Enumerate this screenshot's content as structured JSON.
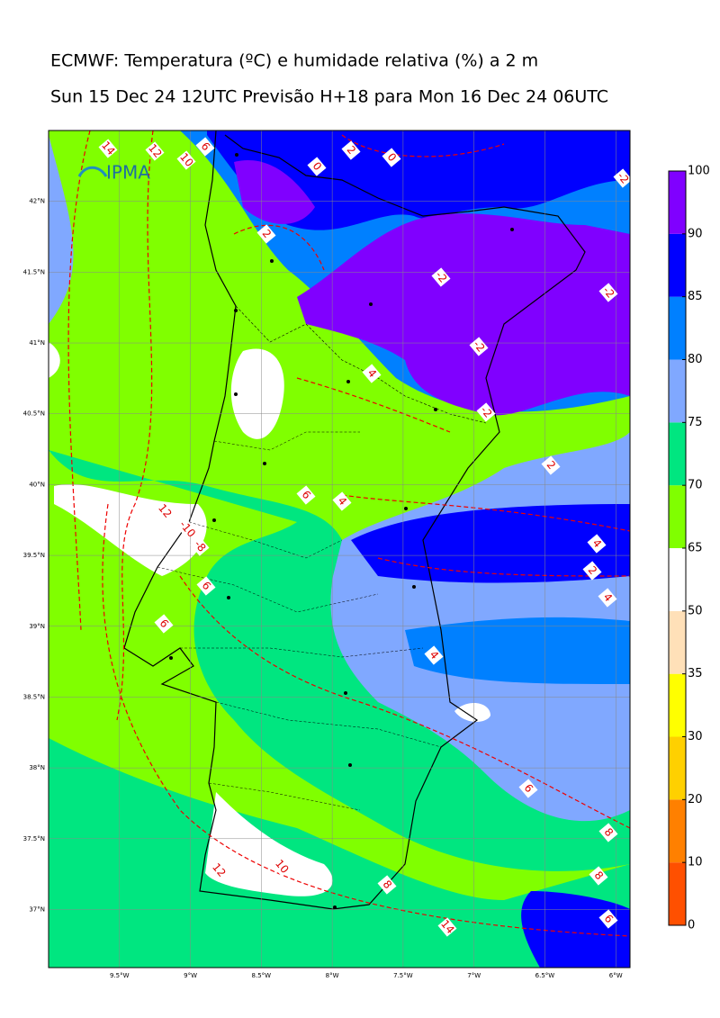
{
  "title": "ECMWF: Temperatura (ºC) e humidade relativa (%) a 2 m",
  "subtitle": "Sun 15 Dec 24 12UTC Previsão H+18 para Mon 16 Dec 24 06UTC",
  "logo": "IPMA",
  "map": {
    "xlim": [
      -10,
      -5.9
    ],
    "ylim": [
      36.59,
      42.5
    ],
    "xticks": [
      {
        "value": -9.5,
        "label": "9.5°W"
      },
      {
        "value": -9,
        "label": "9°W"
      },
      {
        "value": -8.5,
        "label": "8.5°W"
      },
      {
        "value": -8,
        "label": "8°W"
      },
      {
        "value": -7.5,
        "label": "7.5°W"
      },
      {
        "value": -7,
        "label": "7°W"
      },
      {
        "value": -6.5,
        "label": "6.5°W"
      },
      {
        "value": -6,
        "label": "6°W"
      }
    ],
    "yticks": [
      {
        "value": 42,
        "label": "42°N"
      },
      {
        "value": 41.5,
        "label": "41.5°N"
      },
      {
        "value": 41,
        "label": "41°N"
      },
      {
        "value": 40.5,
        "label": "40.5°N"
      },
      {
        "value": 40,
        "label": "40°N"
      },
      {
        "value": 39.5,
        "label": "39.5°N"
      },
      {
        "value": 39,
        "label": "39°N"
      },
      {
        "value": 38.5,
        "label": "38.5°N"
      },
      {
        "value": 38,
        "label": "38°N"
      },
      {
        "value": 37.5,
        "label": "37.5°N"
      },
      {
        "value": 37,
        "label": "37°N"
      }
    ],
    "grid": true
  },
  "colorbar": {
    "levels": [
      0,
      10,
      20,
      30,
      35,
      50,
      65,
      70,
      75,
      80,
      85,
      90,
      100
    ],
    "colors": [
      "#ff5000",
      "#ff8000",
      "#ffd000",
      "#ffff00",
      "#ffe0b8",
      "#ffffff",
      "#80ff00",
      "#00e680",
      "#80a8ff",
      "#0080ff",
      "#0000ff",
      "#8000ff"
    ]
  },
  "contour_labels": [
    "14",
    "12",
    "10",
    "6",
    "2",
    "0",
    "0",
    "-2",
    "2",
    "-2",
    "-2",
    "-2",
    "4",
    "-2",
    "2",
    "6",
    "4",
    "12",
    "-10",
    "-8",
    "4",
    "2",
    "6",
    "4",
    "6",
    "4",
    "6",
    "8",
    "12",
    "10",
    "8",
    "8",
    "14",
    "6"
  ]
}
